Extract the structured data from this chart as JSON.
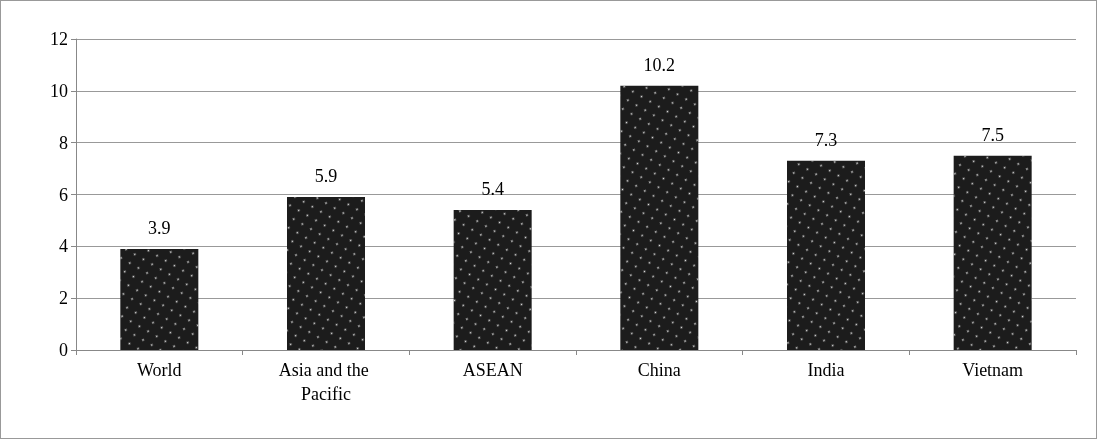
{
  "chart_data": {
    "type": "bar",
    "categories": [
      "World",
      "Asia and the Pacific",
      "ASEAN",
      "China",
      "India",
      "Vietnam"
    ],
    "values": [
      3.9,
      5.9,
      5.4,
      10.2,
      7.3,
      7.5
    ],
    "color": "#1c1c1c",
    "ylim": [
      0,
      12
    ],
    "yticks": [
      0,
      2,
      4,
      6,
      8,
      10,
      12
    ],
    "grid": "y",
    "data_labels": true
  }
}
